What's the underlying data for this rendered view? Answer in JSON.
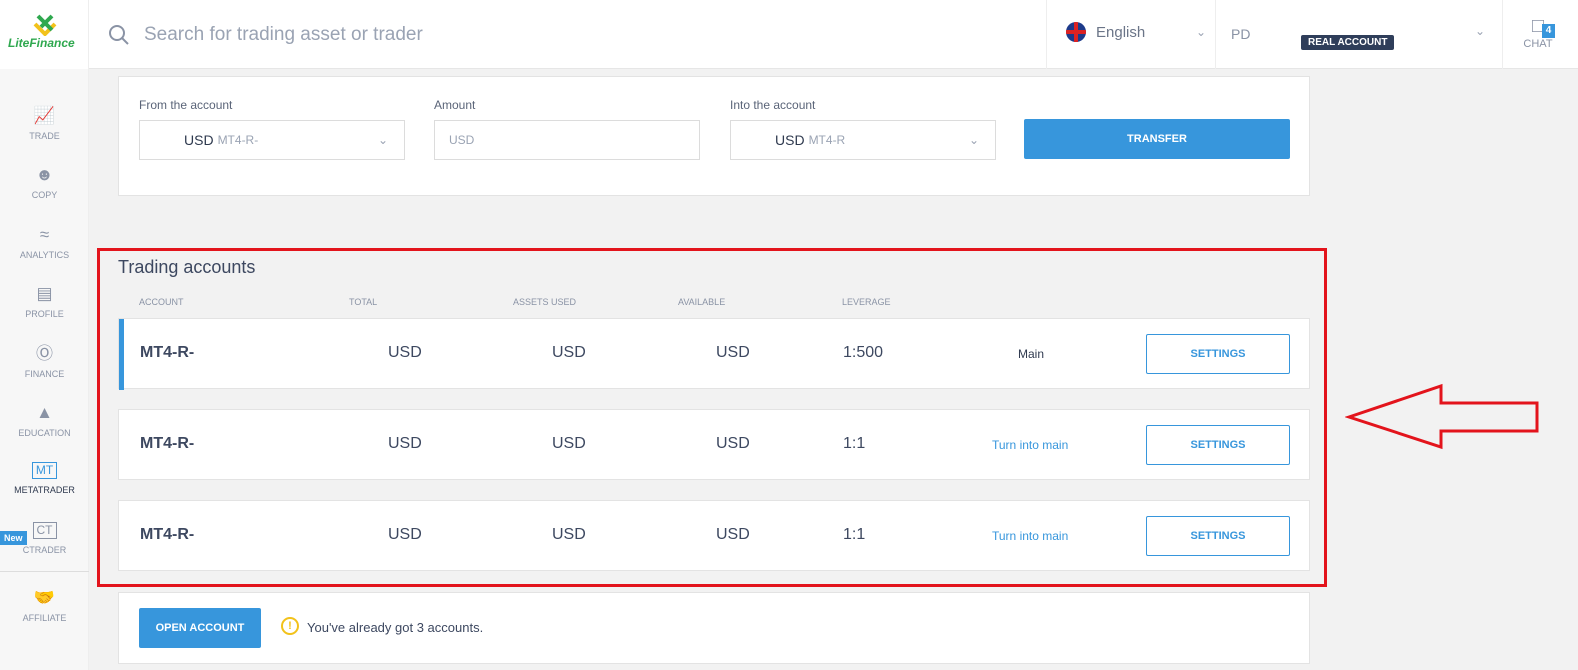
{
  "header": {
    "logo": "LiteFinance",
    "search_placeholder": "Search for trading asset or trader",
    "language": "English",
    "user": "PD",
    "account_badge": "REAL ACCOUNT",
    "chat_label": "CHAT",
    "chat_count": "4"
  },
  "sidebar": {
    "items": [
      {
        "label": "TRADE",
        "icon": "chart-icon"
      },
      {
        "label": "COPY",
        "icon": "person-icon"
      },
      {
        "label": "ANALYTICS",
        "icon": "analytics-icon"
      },
      {
        "label": "PROFILE",
        "icon": "id-card-icon"
      },
      {
        "label": "FINANCE",
        "icon": "dollar-icon"
      },
      {
        "label": "EDUCATION",
        "icon": "graduation-cap-icon"
      },
      {
        "label": "METATRADER",
        "box": "MT"
      },
      {
        "label": "CTRADER",
        "box": "CT"
      },
      {
        "label": "AFFILIATE",
        "icon": "handshake-icon"
      }
    ],
    "new_badge": "New"
  },
  "transfer": {
    "from_label": "From the account",
    "from_currency": "USD",
    "from_account": "MT4-R-",
    "amount_label": "Amount",
    "amount_placeholder": "USD",
    "into_label": "Into the account",
    "into_currency": "USD",
    "into_account": "MT4-R",
    "button": "TRANSFER"
  },
  "trading": {
    "title": "Trading accounts",
    "columns": [
      "ACCOUNT",
      "TOTAL",
      "ASSETS USED",
      "AVAILABLE",
      "LEVERAGE"
    ],
    "rows": [
      {
        "account": "MT4-R-",
        "total": "USD",
        "assets_used": "USD",
        "available": "USD",
        "leverage": "1:500",
        "status": "Main",
        "settings": "SETTINGS"
      },
      {
        "account": "MT4-R-",
        "total": "USD",
        "assets_used": "USD",
        "available": "USD",
        "leverage": "1:1",
        "status": "Turn into main",
        "settings": "SETTINGS"
      },
      {
        "account": "MT4-R-",
        "total": "USD",
        "assets_used": "USD",
        "available": "USD",
        "leverage": "1:1",
        "status": "Turn into main",
        "settings": "SETTINGS"
      }
    ]
  },
  "footer": {
    "open_account": "OPEN ACCOUNT",
    "notice": "You've already got 3 accounts."
  },
  "colors": {
    "accent": "#3796dc",
    "highlight": "#e3141c"
  }
}
